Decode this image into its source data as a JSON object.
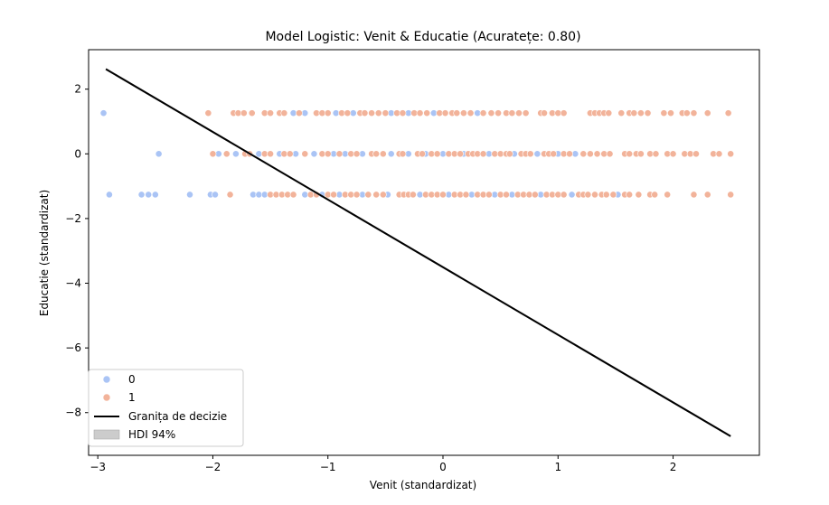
{
  "chart_data": {
    "type": "scatter",
    "title": "Model Logistic: Venit & Educatie (Acuratețe: 0.80)",
    "xlabel": "Venit (standardizat)",
    "ylabel": "Educatie (standardizat)",
    "xlim": [
      -3.08,
      2.75
    ],
    "ylim": [
      -9.32,
      3.22
    ],
    "xticks": [
      -3,
      -2,
      -1,
      0,
      1,
      2
    ],
    "yticks": [
      2,
      0,
      -2,
      -4,
      -6,
      -8
    ],
    "grid": false,
    "legend_position": "lower-left",
    "colors": {
      "class_0": "#aac4f5",
      "class_1": "#f2b39a",
      "boundary": "#000000",
      "hdi": "#cccccc"
    },
    "series": [
      {
        "name": "0",
        "points": [
          {
            "x": -2.95,
            "y": 1.26
          },
          {
            "x": -1.3,
            "y": 1.26
          },
          {
            "x": -1.2,
            "y": 1.26
          },
          {
            "x": -0.93,
            "y": 1.26
          },
          {
            "x": -0.78,
            "y": 1.26
          },
          {
            "x": -0.45,
            "y": 1.26
          },
          {
            "x": -0.3,
            "y": 1.26
          },
          {
            "x": -0.08,
            "y": 1.26
          },
          {
            "x": 0.3,
            "y": 1.26
          },
          {
            "x": -2.47,
            "y": 0.0
          },
          {
            "x": -1.95,
            "y": 0.0
          },
          {
            "x": -1.8,
            "y": 0.0
          },
          {
            "x": -1.6,
            "y": 0.0
          },
          {
            "x": -1.42,
            "y": 0.0
          },
          {
            "x": -1.28,
            "y": 0.0
          },
          {
            "x": -1.12,
            "y": 0.0
          },
          {
            "x": -0.95,
            "y": 0.0
          },
          {
            "x": -0.85,
            "y": 0.0
          },
          {
            "x": -0.7,
            "y": 0.0
          },
          {
            "x": -0.45,
            "y": 0.0
          },
          {
            "x": -0.3,
            "y": 0.0
          },
          {
            "x": -0.15,
            "y": 0.0
          },
          {
            "x": 0.0,
            "y": 0.0
          },
          {
            "x": 0.18,
            "y": 0.0
          },
          {
            "x": 0.4,
            "y": 0.0
          },
          {
            "x": 0.62,
            "y": 0.0
          },
          {
            "x": 0.82,
            "y": 0.0
          },
          {
            "x": 1.0,
            "y": 0.0
          },
          {
            "x": 1.15,
            "y": 0.0
          },
          {
            "x": -2.9,
            "y": -1.26
          },
          {
            "x": -2.62,
            "y": -1.26
          },
          {
            "x": -2.56,
            "y": -1.26
          },
          {
            "x": -2.5,
            "y": -1.26
          },
          {
            "x": -2.2,
            "y": -1.26
          },
          {
            "x": -2.02,
            "y": -1.26
          },
          {
            "x": -1.98,
            "y": -1.26
          },
          {
            "x": -1.65,
            "y": -1.26
          },
          {
            "x": -1.6,
            "y": -1.26
          },
          {
            "x": -1.55,
            "y": -1.26
          },
          {
            "x": -1.2,
            "y": -1.26
          },
          {
            "x": -1.05,
            "y": -1.26
          },
          {
            "x": -0.9,
            "y": -1.26
          },
          {
            "x": -0.7,
            "y": -1.26
          },
          {
            "x": -0.48,
            "y": -1.26
          },
          {
            "x": -0.2,
            "y": -1.26
          },
          {
            "x": 0.05,
            "y": -1.26
          },
          {
            "x": 0.25,
            "y": -1.26
          },
          {
            "x": 0.45,
            "y": -1.26
          },
          {
            "x": 0.6,
            "y": -1.26
          },
          {
            "x": 0.85,
            "y": -1.26
          },
          {
            "x": 1.12,
            "y": -1.26
          },
          {
            "x": 1.52,
            "y": -1.26
          }
        ]
      },
      {
        "name": "1",
        "points": [
          {
            "x": -2.04,
            "y": 1.26
          },
          {
            "x": -1.82,
            "y": 1.26
          },
          {
            "x": -1.78,
            "y": 1.26
          },
          {
            "x": -1.73,
            "y": 1.26
          },
          {
            "x": -1.66,
            "y": 1.26
          },
          {
            "x": -1.55,
            "y": 1.26
          },
          {
            "x": -1.5,
            "y": 1.26
          },
          {
            "x": -1.42,
            "y": 1.26
          },
          {
            "x": -1.38,
            "y": 1.26
          },
          {
            "x": -1.25,
            "y": 1.26
          },
          {
            "x": -1.1,
            "y": 1.26
          },
          {
            "x": -1.05,
            "y": 1.26
          },
          {
            "x": -1.0,
            "y": 1.26
          },
          {
            "x": -0.88,
            "y": 1.26
          },
          {
            "x": -0.83,
            "y": 1.26
          },
          {
            "x": -0.72,
            "y": 1.26
          },
          {
            "x": -0.68,
            "y": 1.26
          },
          {
            "x": -0.62,
            "y": 1.26
          },
          {
            "x": -0.56,
            "y": 1.26
          },
          {
            "x": -0.5,
            "y": 1.26
          },
          {
            "x": -0.4,
            "y": 1.26
          },
          {
            "x": -0.35,
            "y": 1.26
          },
          {
            "x": -0.25,
            "y": 1.26
          },
          {
            "x": -0.2,
            "y": 1.26
          },
          {
            "x": -0.14,
            "y": 1.26
          },
          {
            "x": -0.03,
            "y": 1.26
          },
          {
            "x": 0.02,
            "y": 1.26
          },
          {
            "x": 0.08,
            "y": 1.26
          },
          {
            "x": 0.12,
            "y": 1.26
          },
          {
            "x": 0.18,
            "y": 1.26
          },
          {
            "x": 0.24,
            "y": 1.26
          },
          {
            "x": 0.35,
            "y": 1.26
          },
          {
            "x": 0.42,
            "y": 1.26
          },
          {
            "x": 0.48,
            "y": 1.26
          },
          {
            "x": 0.55,
            "y": 1.26
          },
          {
            "x": 0.6,
            "y": 1.26
          },
          {
            "x": 0.66,
            "y": 1.26
          },
          {
            "x": 0.72,
            "y": 1.26
          },
          {
            "x": 0.85,
            "y": 1.26
          },
          {
            "x": 0.88,
            "y": 1.26
          },
          {
            "x": 0.95,
            "y": 1.26
          },
          {
            "x": 1.0,
            "y": 1.26
          },
          {
            "x": 1.05,
            "y": 1.26
          },
          {
            "x": 1.28,
            "y": 1.26
          },
          {
            "x": 1.32,
            "y": 1.26
          },
          {
            "x": 1.36,
            "y": 1.26
          },
          {
            "x": 1.4,
            "y": 1.26
          },
          {
            "x": 1.44,
            "y": 1.26
          },
          {
            "x": 1.55,
            "y": 1.26
          },
          {
            "x": 1.62,
            "y": 1.26
          },
          {
            "x": 1.66,
            "y": 1.26
          },
          {
            "x": 1.72,
            "y": 1.26
          },
          {
            "x": 1.78,
            "y": 1.26
          },
          {
            "x": 1.92,
            "y": 1.26
          },
          {
            "x": 1.98,
            "y": 1.26
          },
          {
            "x": 2.08,
            "y": 1.26
          },
          {
            "x": 2.12,
            "y": 1.26
          },
          {
            "x": 2.18,
            "y": 1.26
          },
          {
            "x": 2.3,
            "y": 1.26
          },
          {
            "x": 2.48,
            "y": 1.26
          },
          {
            "x": -2.0,
            "y": 0.0
          },
          {
            "x": -1.88,
            "y": 0.0
          },
          {
            "x": -1.72,
            "y": 0.0
          },
          {
            "x": -1.68,
            "y": 0.0
          },
          {
            "x": -1.55,
            "y": 0.0
          },
          {
            "x": -1.5,
            "y": 0.0
          },
          {
            "x": -1.38,
            "y": 0.0
          },
          {
            "x": -1.33,
            "y": 0.0
          },
          {
            "x": -1.2,
            "y": 0.0
          },
          {
            "x": -1.05,
            "y": 0.0
          },
          {
            "x": -1.0,
            "y": 0.0
          },
          {
            "x": -0.9,
            "y": 0.0
          },
          {
            "x": -0.8,
            "y": 0.0
          },
          {
            "x": -0.75,
            "y": 0.0
          },
          {
            "x": -0.62,
            "y": 0.0
          },
          {
            "x": -0.58,
            "y": 0.0
          },
          {
            "x": -0.52,
            "y": 0.0
          },
          {
            "x": -0.38,
            "y": 0.0
          },
          {
            "x": -0.35,
            "y": 0.0
          },
          {
            "x": -0.22,
            "y": 0.0
          },
          {
            "x": -0.18,
            "y": 0.0
          },
          {
            "x": -0.1,
            "y": 0.0
          },
          {
            "x": -0.05,
            "y": 0.0
          },
          {
            "x": 0.05,
            "y": 0.0
          },
          {
            "x": 0.1,
            "y": 0.0
          },
          {
            "x": 0.15,
            "y": 0.0
          },
          {
            "x": 0.22,
            "y": 0.0
          },
          {
            "x": 0.26,
            "y": 0.0
          },
          {
            "x": 0.3,
            "y": 0.0
          },
          {
            "x": 0.35,
            "y": 0.0
          },
          {
            "x": 0.45,
            "y": 0.0
          },
          {
            "x": 0.5,
            "y": 0.0
          },
          {
            "x": 0.55,
            "y": 0.0
          },
          {
            "x": 0.58,
            "y": 0.0
          },
          {
            "x": 0.68,
            "y": 0.0
          },
          {
            "x": 0.72,
            "y": 0.0
          },
          {
            "x": 0.76,
            "y": 0.0
          },
          {
            "x": 0.88,
            "y": 0.0
          },
          {
            "x": 0.92,
            "y": 0.0
          },
          {
            "x": 0.96,
            "y": 0.0
          },
          {
            "x": 1.05,
            "y": 0.0
          },
          {
            "x": 1.1,
            "y": 0.0
          },
          {
            "x": 1.22,
            "y": 0.0
          },
          {
            "x": 1.28,
            "y": 0.0
          },
          {
            "x": 1.34,
            "y": 0.0
          },
          {
            "x": 1.4,
            "y": 0.0
          },
          {
            "x": 1.45,
            "y": 0.0
          },
          {
            "x": 1.58,
            "y": 0.0
          },
          {
            "x": 1.62,
            "y": 0.0
          },
          {
            "x": 1.68,
            "y": 0.0
          },
          {
            "x": 1.72,
            "y": 0.0
          },
          {
            "x": 1.8,
            "y": 0.0
          },
          {
            "x": 1.85,
            "y": 0.0
          },
          {
            "x": 1.95,
            "y": 0.0
          },
          {
            "x": 2.0,
            "y": 0.0
          },
          {
            "x": 2.1,
            "y": 0.0
          },
          {
            "x": 2.15,
            "y": 0.0
          },
          {
            "x": 2.2,
            "y": 0.0
          },
          {
            "x": 2.35,
            "y": 0.0
          },
          {
            "x": 2.4,
            "y": 0.0
          },
          {
            "x": 2.5,
            "y": 0.0
          },
          {
            "x": -1.85,
            "y": -1.26
          },
          {
            "x": -1.5,
            "y": -1.26
          },
          {
            "x": -1.45,
            "y": -1.26
          },
          {
            "x": -1.4,
            "y": -1.26
          },
          {
            "x": -1.35,
            "y": -1.26
          },
          {
            "x": -1.3,
            "y": -1.26
          },
          {
            "x": -1.15,
            "y": -1.26
          },
          {
            "x": -1.1,
            "y": -1.26
          },
          {
            "x": -1.0,
            "y": -1.26
          },
          {
            "x": -0.95,
            "y": -1.26
          },
          {
            "x": -0.85,
            "y": -1.26
          },
          {
            "x": -0.8,
            "y": -1.26
          },
          {
            "x": -0.75,
            "y": -1.26
          },
          {
            "x": -0.65,
            "y": -1.26
          },
          {
            "x": -0.58,
            "y": -1.26
          },
          {
            "x": -0.52,
            "y": -1.26
          },
          {
            "x": -0.38,
            "y": -1.26
          },
          {
            "x": -0.34,
            "y": -1.26
          },
          {
            "x": -0.3,
            "y": -1.26
          },
          {
            "x": -0.26,
            "y": -1.26
          },
          {
            "x": -0.15,
            "y": -1.26
          },
          {
            "x": -0.1,
            "y": -1.26
          },
          {
            "x": -0.05,
            "y": -1.26
          },
          {
            "x": 0.0,
            "y": -1.26
          },
          {
            "x": 0.1,
            "y": -1.26
          },
          {
            "x": 0.15,
            "y": -1.26
          },
          {
            "x": 0.2,
            "y": -1.26
          },
          {
            "x": 0.3,
            "y": -1.26
          },
          {
            "x": 0.35,
            "y": -1.26
          },
          {
            "x": 0.4,
            "y": -1.26
          },
          {
            "x": 0.5,
            "y": -1.26
          },
          {
            "x": 0.55,
            "y": -1.26
          },
          {
            "x": 0.65,
            "y": -1.26
          },
          {
            "x": 0.7,
            "y": -1.26
          },
          {
            "x": 0.75,
            "y": -1.26
          },
          {
            "x": 0.8,
            "y": -1.26
          },
          {
            "x": 0.9,
            "y": -1.26
          },
          {
            "x": 0.95,
            "y": -1.26
          },
          {
            "x": 1.0,
            "y": -1.26
          },
          {
            "x": 1.05,
            "y": -1.26
          },
          {
            "x": 1.18,
            "y": -1.26
          },
          {
            "x": 1.22,
            "y": -1.26
          },
          {
            "x": 1.26,
            "y": -1.26
          },
          {
            "x": 1.32,
            "y": -1.26
          },
          {
            "x": 1.38,
            "y": -1.26
          },
          {
            "x": 1.42,
            "y": -1.26
          },
          {
            "x": 1.48,
            "y": -1.26
          },
          {
            "x": 1.58,
            "y": -1.26
          },
          {
            "x": 1.62,
            "y": -1.26
          },
          {
            "x": 1.7,
            "y": -1.26
          },
          {
            "x": 1.8,
            "y": -1.26
          },
          {
            "x": 1.84,
            "y": -1.26
          },
          {
            "x": 1.95,
            "y": -1.26
          },
          {
            "x": 2.18,
            "y": -1.26
          },
          {
            "x": 2.3,
            "y": -1.26
          },
          {
            "x": 2.5,
            "y": -1.26
          }
        ]
      }
    ],
    "decision_boundary": {
      "name": "Granița de decizie",
      "x": [
        -2.93,
        2.5
      ],
      "y": [
        2.62,
        -8.73
      ]
    },
    "hdi_band": {
      "name": "HDI 94%",
      "x": [
        -2.93,
        2.5
      ],
      "y_low": [
        2.58,
        -8.77
      ],
      "y_high": [
        2.66,
        -8.69
      ]
    },
    "legend": {
      "entries": [
        {
          "label": "0",
          "kind": "marker",
          "color": "#aac4f5"
        },
        {
          "label": "1",
          "kind": "marker",
          "color": "#f2b39a"
        },
        {
          "label": "Granița de decizie",
          "kind": "line",
          "color": "#000000"
        },
        {
          "label": "HDI 94%",
          "kind": "patch",
          "color": "#cccccc"
        }
      ]
    }
  }
}
